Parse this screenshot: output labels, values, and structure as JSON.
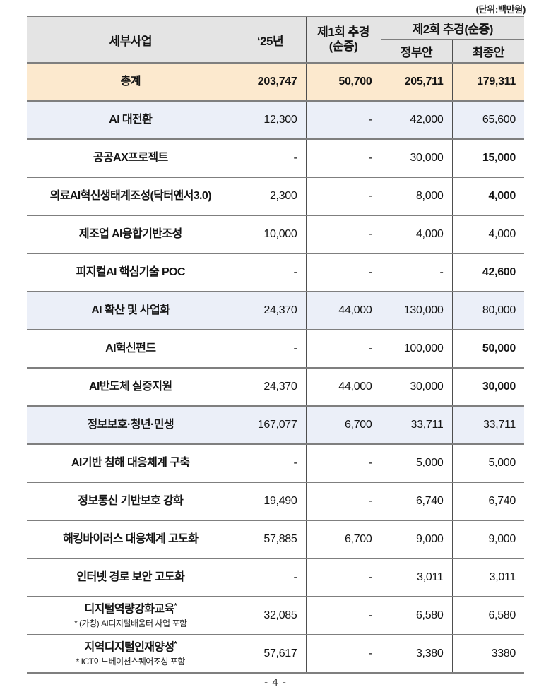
{
  "unit_note": "(단위:백만원)",
  "page_number": "- 4 -",
  "colors": {
    "header_bg": "#e4e4e4",
    "total_row_bg": "#fce9ce",
    "category_row_bg": "#ebeff8",
    "border_horizontal": "#7f7f7f",
    "border_vertical": "#4e4e4e",
    "text": "#141414"
  },
  "table": {
    "header": {
      "col1": "세부사업",
      "col2": "‘25년",
      "col3_line1": "제1회 추경",
      "col3_line2": "(순증)",
      "col4": "제2회 추경(순증)",
      "col4_sub1": "정부안",
      "col4_sub2": "최종안"
    },
    "rows": [
      {
        "label": "총계",
        "v1": "203,747",
        "v2": "50,700",
        "v3": "205,711",
        "v4": "179,311"
      },
      {
        "label": "AI 대전환",
        "v1": "12,300",
        "v2": "-",
        "v3": "42,000",
        "v4": "65,600"
      },
      {
        "label": "공공AX프로젝트",
        "v1": "-",
        "v2": "-",
        "v3": "30,000",
        "v4": "15,000"
      },
      {
        "label": "의료AI혁신생태계조성(닥터앤서3.0)",
        "v1": "2,300",
        "v2": "-",
        "v3": "8,000",
        "v4": "4,000"
      },
      {
        "label": "제조업  AI융합기반조성",
        "v1": "10,000",
        "v2": "-",
        "v3": "4,000",
        "v4": "4,000"
      },
      {
        "label": "피지컬AI 핵심기술  POC",
        "v1": "-",
        "v2": "-",
        "v3": "-",
        "v4": "42,600"
      },
      {
        "label": "AI 확산 및  사업화",
        "v1": "24,370",
        "v2": "44,000",
        "v3": "130,000",
        "v4": "80,000"
      },
      {
        "label": "AI혁신펀드",
        "v1": "-",
        "v2": "-",
        "v3": "100,000",
        "v4": "50,000"
      },
      {
        "label": "AI반도체  실증지원",
        "v1": "24,370",
        "v2": "44,000",
        "v3": "30,000",
        "v4": "30,000"
      },
      {
        "label": "정보보호·청년·민생",
        "v1": "167,077",
        "v2": "6,700",
        "v3": "33,711",
        "v4": "33,711"
      },
      {
        "label": "AI기반 침해 대응체계 구축",
        "v1": "-",
        "v2": "-",
        "v3": "5,000",
        "v4": "5,000"
      },
      {
        "label": "정보통신  기반보호  강화",
        "v1": "19,490",
        "v2": "-",
        "v3": "6,740",
        "v4": "6,740"
      },
      {
        "label": "해킹바이러스  대응체계  고도화",
        "v1": "57,885",
        "v2": "6,700",
        "v3": "9,000",
        "v4": "9,000"
      },
      {
        "label": "인터넷  경로  보안  고도화",
        "v1": "-",
        "v2": "-",
        "v3": "3,011",
        "v4": "3,011"
      },
      {
        "label": "디지털역량강화교육",
        "sup": "*",
        "note": "* (가칭) AI디지털배움터 사업 포함",
        "v1": "32,085",
        "v2": "-",
        "v3": "6,580",
        "v4": "6,580"
      },
      {
        "label": "지역디지털인재양성",
        "sup": "*",
        "note": "* ICT이노베이션스퀘어조성 포함",
        "v1": "57,617",
        "v2": "-",
        "v3": "3,380",
        "v4": "3380"
      }
    ]
  }
}
